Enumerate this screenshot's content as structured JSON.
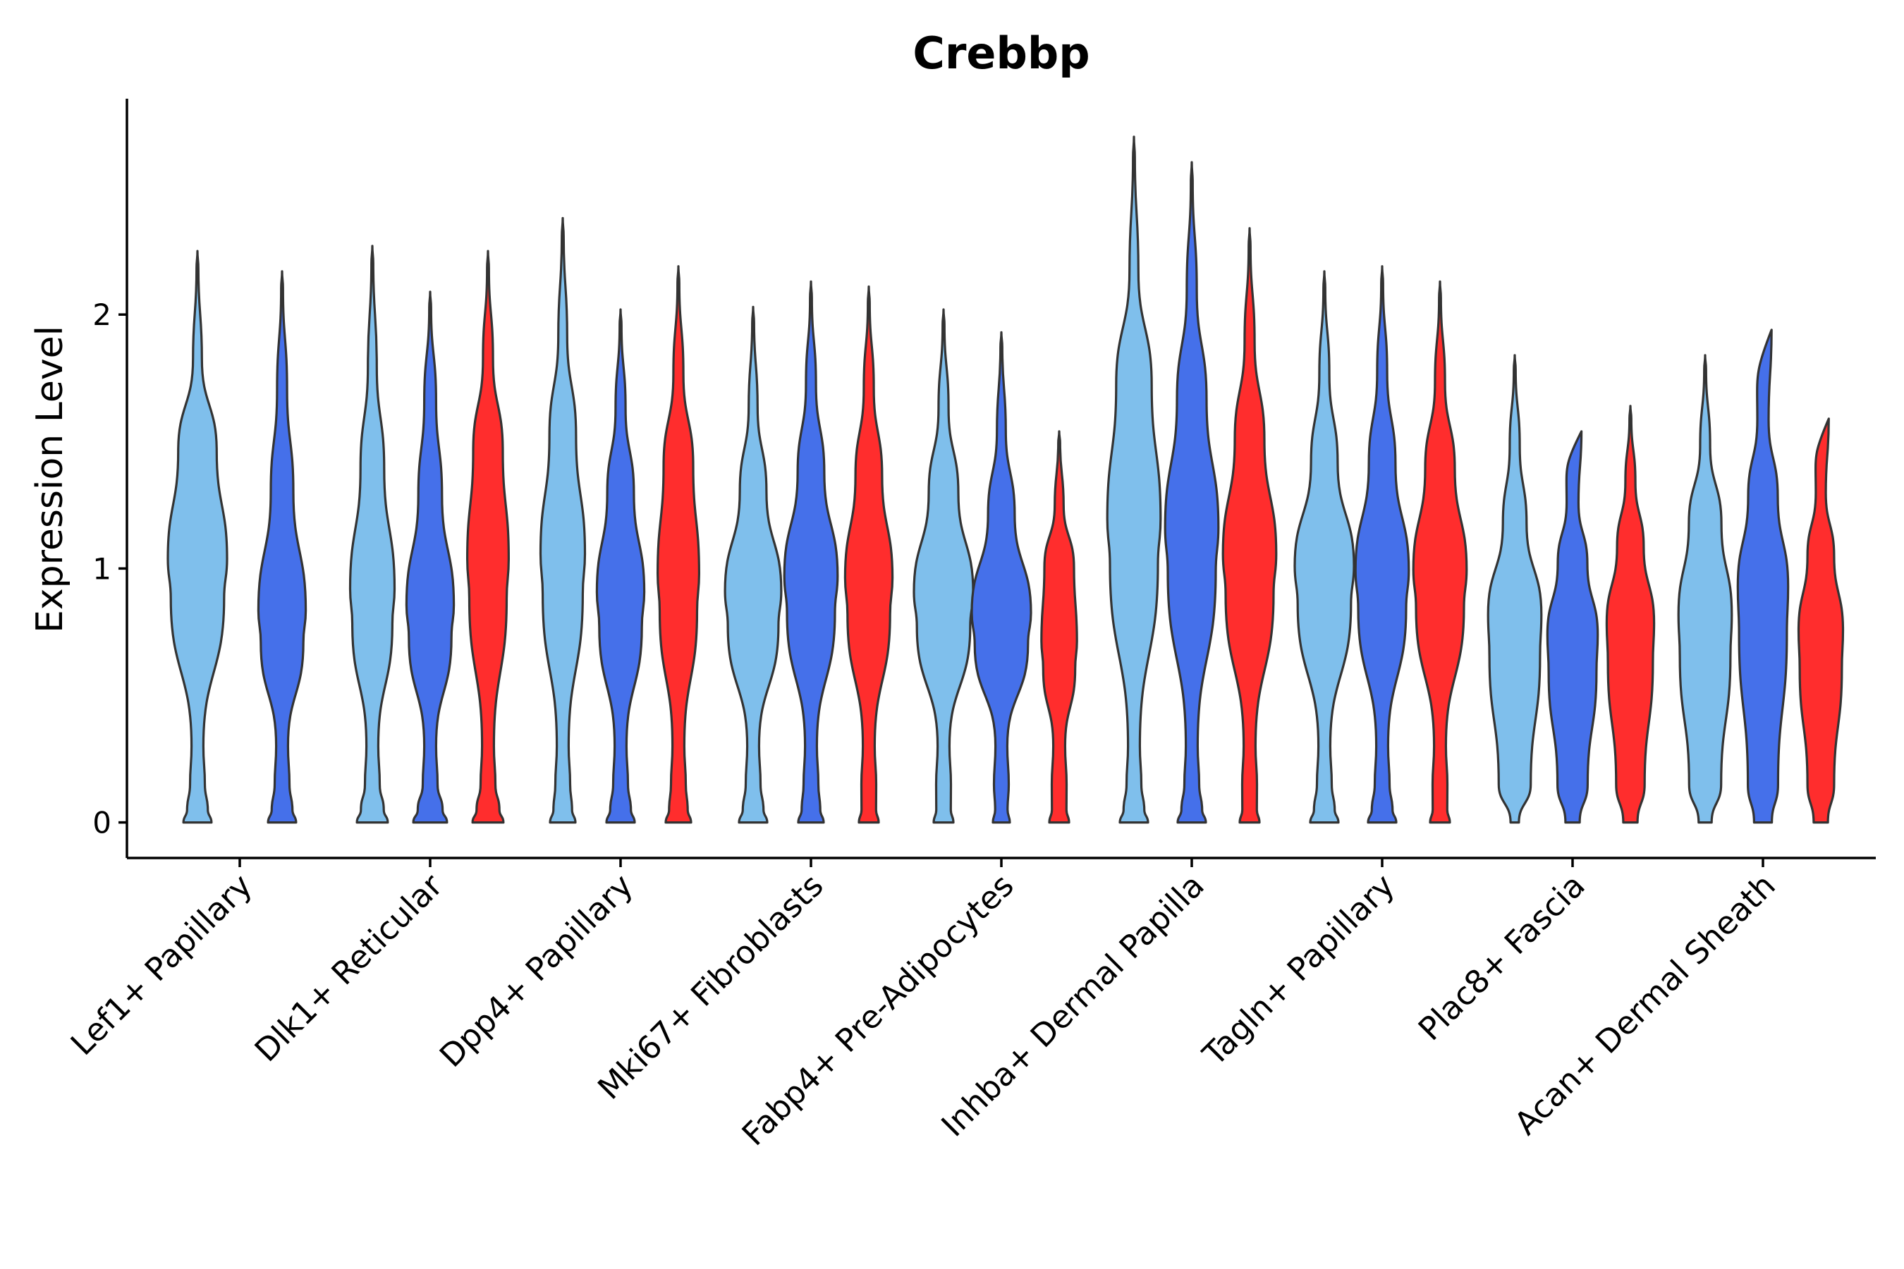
{
  "chart_data": {
    "type": "violin",
    "title": "Crebbp",
    "xlabel": "",
    "ylabel": "Expression Level",
    "ylim": [
      -0.14,
      2.85
    ],
    "yticks": [
      0,
      1,
      2
    ],
    "ytick_labels": [
      "0",
      "1",
      "2"
    ],
    "grid": false,
    "legend": "none",
    "groups": [
      {
        "name": "Lef1+ Papillary",
        "violins": [
          {
            "color": "#7fbfec",
            "max": 2.25,
            "widths": [
              [
                "a",
                0.5,
                0.1
              ],
              [
                1.0,
                1.0
              ],
              [
                0.65,
                1.0
              ],
              [
                0.1,
                0.4
              ],
              [
                0.5,
                0.25
              ]
            ]
          },
          {
            "color": "#4570ea",
            "max": 2.17,
            "widths": [
              [
                "a",
                0.5,
                0.1
              ],
              [
                0.8,
                0.3
              ],
              [
                0.38,
                0.9
              ],
              [
                0.12,
                0.2
              ],
              [
                0.5,
                0.25
              ]
            ]
          }
        ]
      },
      {
        "name": "Dlk1+ Reticular",
        "violins": [
          {
            "color": "#7fbfec",
            "max": 2.27,
            "widths": [
              [
                "a",
                0.55,
                0.0
              ],
              [
                0.75,
                0.5
              ],
              [
                0.4,
                0.4
              ],
              [
                0.1,
                0.3
              ],
              [
                0.5,
                0.25
              ]
            ]
          },
          {
            "color": "#4570ea",
            "max": 2.09,
            "widths": [
              [
                "a",
                0.6,
                0.0
              ],
              [
                0.8,
                0.5
              ],
              [
                0.4,
                0.4
              ],
              [
                0.15,
                0.2
              ],
              [
                0.5,
                0.25
              ]
            ]
          },
          {
            "color": "#ff2d2d",
            "max": 2.25,
            "widths": [
              [
                "a",
                0.55,
                0.0
              ],
              [
                0.7,
                1.0
              ],
              [
                0.5,
                0.9
              ],
              [
                0.12,
                0.3
              ],
              [
                0.5,
                0.25
              ]
            ]
          }
        ]
      },
      {
        "name": "Dpp4+ Papillary",
        "violins": [
          {
            "color": "#7fbfec",
            "max": 2.38,
            "widths": [
              [
                "a",
                0.45,
                0.0
              ],
              [
                0.75,
                0.9
              ],
              [
                0.45,
                0.6
              ],
              [
                0.1,
                0.4
              ],
              [
                0.5,
                0.25
              ]
            ]
          },
          {
            "color": "#4570ea",
            "max": 2.02,
            "widths": [
              [
                "a",
                0.5,
                0.0
              ],
              [
                0.8,
                0.8
              ],
              [
                0.45,
                0.6
              ],
              [
                0.12,
                0.5
              ],
              [
                0.5,
                0.25
              ]
            ]
          },
          {
            "color": "#ff2d2d",
            "max": 2.19,
            "widths": [
              [
                "a",
                0.45,
                0.0
              ],
              [
                0.7,
                0.85
              ],
              [
                0.5,
                0.75
              ],
              [
                0.12,
                0.4
              ],
              [
                0.5,
                0.25
              ]
            ]
          }
        ]
      },
      {
        "name": "Mki67+ Fibroblasts",
        "violins": [
          {
            "color": "#7fbfec",
            "max": 2.03,
            "widths": [
              [
                "a",
                0.5,
                0.0
              ],
              [
                0.95,
                0.8
              ],
              [
                0.45,
                0.5
              ],
              [
                0.1,
                0.3
              ],
              [
                0.5,
                0.25
              ]
            ]
          },
          {
            "color": "#4570ea",
            "max": 2.13,
            "widths": [
              [
                "a",
                0.45,
                0.0
              ],
              [
                0.9,
                0.9
              ],
              [
                0.45,
                0.45
              ],
              [
                0.12,
                0.4
              ],
              [
                0.5,
                0.25
              ]
            ]
          },
          {
            "color": "#ff2d2d",
            "max": 2.11,
            "widths": [
              [
                "a",
                0.35,
                0.0
              ],
              [
                0.8,
                0.9
              ],
              [
                0.45,
                0.5
              ],
              [
                0.12,
                0.3
              ],
              [
                0.5,
                0.25
              ]
            ]
          }
        ]
      },
      {
        "name": "Fabp4+ Pre-Adipocytes",
        "violins": [
          {
            "color": "#7fbfec",
            "max": 2.02,
            "widths": [
              [
                "a",
                0.35,
                0.0
              ],
              [
                1.0,
                0.8
              ],
              [
                0.5,
                0.5
              ],
              [
                0.12,
                0.3
              ],
              [
                0.5,
                0.25
              ]
            ]
          },
          {
            "color": "#4570ea",
            "max": 1.93,
            "widths": [
              [
                "a",
                0.3,
                0.0
              ],
              [
                1.0,
                0.6
              ],
              [
                0.45,
                0.4
              ],
              [
                0.1,
                0.3
              ],
              [
                0.5,
                0.25
              ]
            ]
          },
          {
            "color": "#ff2d2d",
            "max": 1.54,
            "widths": [
              [
                "a",
                0.35,
                0.0
              ],
              [
                0.6,
                0.7
              ],
              [
                0.5,
                0.8
              ],
              [
                0.1,
                0.3
              ],
              [
                0.5,
                0.25
              ]
            ]
          }
        ]
      },
      {
        "name": "Inhba+ Dermal Papilla",
        "violins": [
          {
            "color": "#7fbfec",
            "max": 2.7,
            "widths": [
              [
                "a",
                0.5,
                0.0
              ],
              [
                0.9,
                1.0
              ],
              [
                0.6,
                0.5
              ],
              [
                0.1,
                0.25
              ],
              [
                0.5,
                0.25
              ]
            ]
          },
          {
            "color": "#4570ea",
            "max": 2.6,
            "widths": [
              [
                "a",
                0.5,
                0.1
              ],
              [
                0.9,
                1.0
              ],
              [
                0.5,
                0.55
              ],
              [
                0.12,
                0.4
              ],
              [
                0.5,
                0.25
              ]
            ]
          },
          {
            "color": "#ff2d2d",
            "max": 2.34,
            "widths": [
              [
                "a",
                0.35,
                0.0
              ],
              [
                0.9,
                0.95
              ],
              [
                0.5,
                0.5
              ],
              [
                0.12,
                0.3
              ],
              [
                0.5,
                0.25
              ]
            ]
          }
        ]
      },
      {
        "name": "Tagln+ Papillary",
        "violins": [
          {
            "color": "#7fbfec",
            "max": 2.17,
            "widths": [
              [
                "a",
                0.5,
                0.0
              ],
              [
                1.0,
                1.0
              ],
              [
                0.45,
                0.8
              ],
              [
                0.12,
                0.2
              ],
              [
                0.5,
                0.25
              ]
            ]
          },
          {
            "color": "#4570ea",
            "max": 2.19,
            "widths": [
              [
                "a",
                0.5,
                0.0
              ],
              [
                0.9,
                0.9
              ],
              [
                0.45,
                0.6
              ],
              [
                0.12,
                0.3
              ],
              [
                0.5,
                0.25
              ]
            ]
          },
          {
            "color": "#ff2d2d",
            "max": 2.13,
            "widths": [
              [
                "a",
                0.35,
                0.0
              ],
              [
                0.9,
                1.0
              ],
              [
                0.5,
                0.6
              ],
              [
                0.12,
                0.25
              ],
              [
                0.5,
                0.25
              ]
            ]
          }
        ]
      },
      {
        "name": "Plac8+ Fascia",
        "violins": [
          {
            "color": "#7fbfec",
            "max": 1.84,
            "widths": [
              [
                "b",
                0.14
              ],
              [
                0.9,
                0.7
              ],
              [
                0.4,
                0.6
              ],
              [
                0.12,
                0.25
              ],
              [
                0.5,
                0.25
              ]
            ]
          },
          {
            "color": "#4570ea",
            "max": 1.54,
            "widths": [
              [
                "b",
                0.24
              ],
              [
                0.85,
                0.8
              ],
              [
                0.5,
                1.0
              ],
              [
                0.15,
                0.9
              ]
            ]
          },
          {
            "color": "#ff2d2d",
            "max": 1.64,
            "widths": [
              [
                "b",
                0.24
              ],
              [
                0.8,
                0.85
              ],
              [
                0.45,
                0.8
              ],
              [
                0.12,
                0.25
              ],
              [
                0.5,
                0.25
              ]
            ]
          }
        ]
      },
      {
        "name": "Acan+ Dermal Sheath",
        "violins": [
          {
            "color": "#7fbfec",
            "max": 1.84,
            "widths": [
              [
                "b",
                0.22
              ],
              [
                0.9,
                0.7
              ],
              [
                0.55,
                0.65
              ],
              [
                0.12,
                0.35
              ],
              [
                0.5,
                0.25
              ]
            ]
          },
          {
            "color": "#4570ea",
            "max": 1.94,
            "widths": [
              [
                "b",
                0.3
              ],
              [
                0.85,
                1.0
              ],
              [
                0.5,
                0.8
              ],
              [
                0.14,
                0.55
              ]
            ]
          },
          {
            "color": "#ff2d2d",
            "max": 1.59,
            "widths": [
              [
                "b",
                0.24
              ],
              [
                0.75,
                0.8
              ],
              [
                0.45,
                0.8
              ],
              [
                0.12,
                0.6
              ]
            ]
          }
        ]
      }
    ]
  }
}
